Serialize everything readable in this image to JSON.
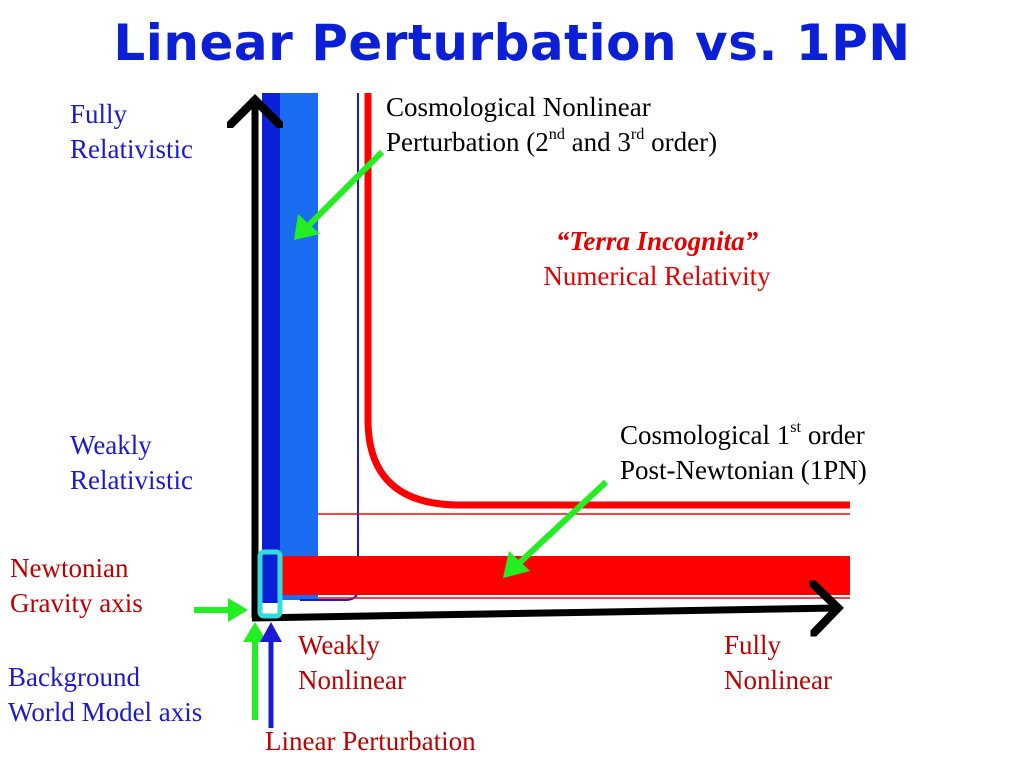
{
  "title": "Linear Perturbation vs. 1PN",
  "labels": {
    "fully_relativistic": [
      "Fully",
      "Relativistic"
    ],
    "weakly_relativistic": [
      "Weakly",
      "Relativistic"
    ],
    "newtonian": [
      "Newtonian",
      "Gravity axis"
    ],
    "background": [
      "Background",
      "World Model axis"
    ],
    "weakly_nonlinear": [
      "Weakly",
      "Nonlinear"
    ],
    "fully_nonlinear": [
      "Fully",
      "Nonlinear"
    ],
    "linear_perturbation": "Linear Perturbation",
    "cosmo_nonlinear": {
      "line1": "Cosmological Nonlinear",
      "line2_prefix": "Perturbation (2",
      "sup1": "nd",
      "mid": " and 3",
      "sup2": "rd",
      "suffix": " order)"
    },
    "terra_incognita": "“Terra Incognita”",
    "numerical_relativity": "Numerical Relativity",
    "cosmo_1pn": {
      "line1_prefix": "Cosmological 1",
      "sup": "st",
      "line1_suffix": " order",
      "line2": "Post-Newtonian (1PN)"
    }
  },
  "colors": {
    "title": "#0a1fd6",
    "axis": "#000000",
    "linear_band": "#1a6cf0",
    "background_axis_band": "#0a1fd6",
    "pn_band": "#ff0000",
    "pointer_arrow": "#22ee22",
    "highlight_box": "#33dddd"
  }
}
